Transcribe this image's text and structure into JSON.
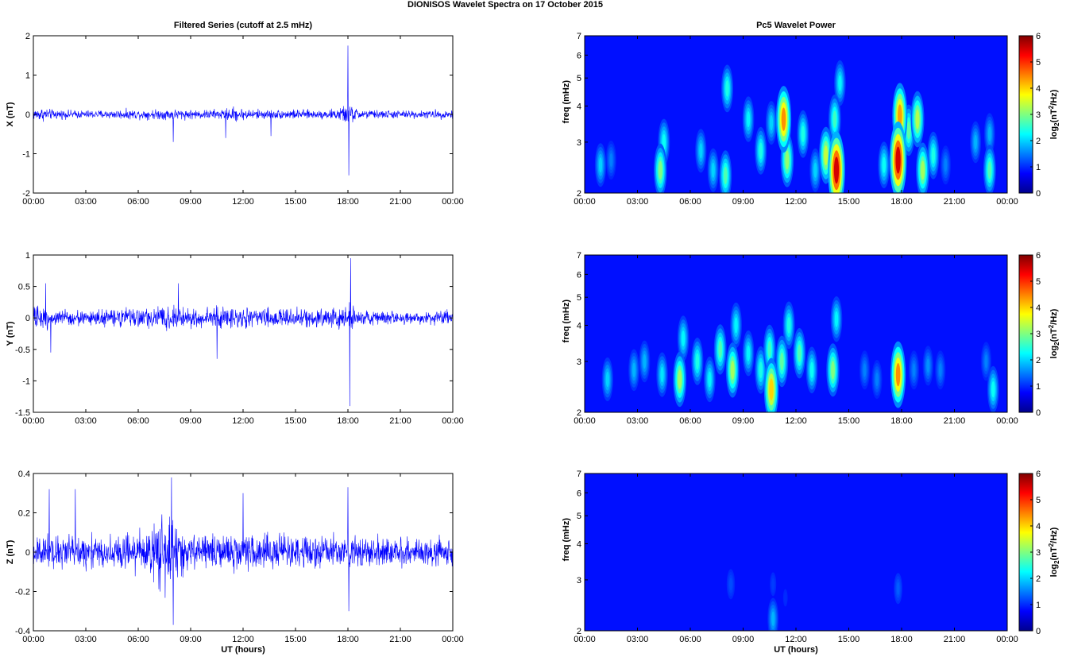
{
  "figure": {
    "title": "DIONISOS Wavelet Spectra on 17 October   2015"
  },
  "chart_data": [
    {
      "type": "line",
      "panel": "x-series",
      "title": "Filtered Series (cutoff at 2.5 mHz)",
      "xlabel": "",
      "ylabel": "X (nT)",
      "xticks": [
        "00:00",
        "03:00",
        "06:00",
        "09:00",
        "12:00",
        "15:00",
        "18:00",
        "21:00",
        "00:00"
      ],
      "xlim_hours": [
        0,
        24
      ],
      "yticks": [
        "-2",
        "-1",
        "0",
        "1",
        "2"
      ],
      "ylim": [
        -2,
        2
      ],
      "color": "#0000ff",
      "envelope": {
        "hours": [
          0,
          0.5,
          1,
          2,
          3,
          4,
          5,
          6,
          7,
          8,
          9,
          10,
          11,
          11.5,
          12,
          13,
          14,
          15,
          16,
          17,
          17.5,
          18,
          18.3,
          18.6,
          19,
          20,
          21,
          22,
          23,
          24
        ],
        "amplitude": [
          0.2,
          0.25,
          0.18,
          0.15,
          0.15,
          0.15,
          0.17,
          0.17,
          0.18,
          0.2,
          0.17,
          0.17,
          0.2,
          0.28,
          0.2,
          0.18,
          0.16,
          0.18,
          0.15,
          0.17,
          0.25,
          0.35,
          0.3,
          0.2,
          0.16,
          0.15,
          0.15,
          0.14,
          0.15,
          0.18
        ]
      },
      "peaks": [
        {
          "hour": 18.0,
          "value": 1.75
        },
        {
          "hour": 18.05,
          "value": -1.55
        },
        {
          "hour": 11.0,
          "value": -0.6
        },
        {
          "hour": 8.0,
          "value": -0.7
        },
        {
          "hour": 13.6,
          "value": -0.55
        }
      ]
    },
    {
      "type": "heatmap",
      "panel": "x-power",
      "title": "Pc5 Wavelet Power",
      "xlabel": "",
      "ylabel": "freq (mHz)",
      "xticks": [
        "00:00",
        "03:00",
        "06:00",
        "09:00",
        "12:00",
        "15:00",
        "18:00",
        "21:00",
        "00:00"
      ],
      "xlim_hours": [
        0,
        24
      ],
      "yticks": [
        "2",
        "3",
        "4",
        "5",
        "6",
        "7"
      ],
      "ylim_mHz": [
        2,
        7
      ],
      "yscale": "log",
      "colorbar": {
        "label": "log2(nT^2/Hz)",
        "ticks": [
          "0",
          "1",
          "2",
          "3",
          "4",
          "5",
          "6"
        ],
        "range": [
          0,
          6
        ],
        "colormap": "jet"
      },
      "blobs": [
        {
          "hour": 0.9,
          "freq": 2.5,
          "power": 2.0
        },
        {
          "hour": 1.5,
          "freq": 2.6,
          "power": 1.5
        },
        {
          "hour": 4.3,
          "freq": 2.4,
          "power": 3.0
        },
        {
          "hour": 4.5,
          "freq": 3.0,
          "power": 2.3
        },
        {
          "hour": 6.6,
          "freq": 2.8,
          "power": 2.0
        },
        {
          "hour": 7.3,
          "freq": 2.4,
          "power": 2.0
        },
        {
          "hour": 8.0,
          "freq": 2.3,
          "power": 2.7
        },
        {
          "hour": 8.1,
          "freq": 4.6,
          "power": 2.4
        },
        {
          "hour": 9.3,
          "freq": 3.6,
          "power": 2.2
        },
        {
          "hour": 10.0,
          "freq": 2.8,
          "power": 2.4
        },
        {
          "hour": 10.6,
          "freq": 3.5,
          "power": 2.0
        },
        {
          "hour": 11.3,
          "freq": 3.6,
          "power": 4.4
        },
        {
          "hour": 11.5,
          "freq": 2.6,
          "power": 3.1
        },
        {
          "hour": 12.4,
          "freq": 3.2,
          "power": 2.4
        },
        {
          "hour": 13.1,
          "freq": 2.4,
          "power": 2.0
        },
        {
          "hour": 13.7,
          "freq": 2.7,
          "power": 3.4
        },
        {
          "hour": 14.3,
          "freq": 2.4,
          "power": 5.5
        },
        {
          "hour": 14.2,
          "freq": 3.6,
          "power": 2.6
        },
        {
          "hour": 14.5,
          "freq": 4.8,
          "power": 2.2
        },
        {
          "hour": 17.0,
          "freq": 2.5,
          "power": 2.3
        },
        {
          "hour": 17.8,
          "freq": 2.6,
          "power": 5.5
        },
        {
          "hour": 17.9,
          "freq": 3.7,
          "power": 4.3
        },
        {
          "hour": 18.4,
          "freq": 3.3,
          "power": 2.8
        },
        {
          "hour": 18.9,
          "freq": 3.6,
          "power": 3.3
        },
        {
          "hour": 19.2,
          "freq": 2.4,
          "power": 3.2
        },
        {
          "hour": 19.8,
          "freq": 2.7,
          "power": 2.4
        },
        {
          "hour": 20.5,
          "freq": 2.5,
          "power": 1.5
        },
        {
          "hour": 22.2,
          "freq": 3.0,
          "power": 1.8
        },
        {
          "hour": 23.0,
          "freq": 2.4,
          "power": 2.7
        },
        {
          "hour": 23.0,
          "freq": 3.2,
          "power": 1.8
        }
      ]
    },
    {
      "type": "line",
      "panel": "y-series",
      "title": "",
      "xlabel": "",
      "ylabel": "Y (nT)",
      "xticks": [
        "00:00",
        "03:00",
        "06:00",
        "09:00",
        "12:00",
        "15:00",
        "18:00",
        "21:00",
        "00:00"
      ],
      "xlim_hours": [
        0,
        24
      ],
      "yticks": [
        "-1.5",
        "-1",
        "-0.5",
        "0",
        "0.5",
        "1"
      ],
      "ylim": [
        -1.5,
        1
      ],
      "color": "#0000ff",
      "envelope": {
        "hours": [
          0,
          0.5,
          1,
          2,
          3,
          4,
          5,
          6,
          7,
          8,
          9,
          10,
          11,
          11.5,
          12,
          13,
          14,
          15,
          16,
          17,
          17.5,
          18,
          18.3,
          18.6,
          19,
          20,
          21,
          22,
          23,
          24
        ],
        "amplitude": [
          0.25,
          0.3,
          0.2,
          0.17,
          0.17,
          0.18,
          0.2,
          0.22,
          0.22,
          0.25,
          0.26,
          0.25,
          0.27,
          0.25,
          0.24,
          0.24,
          0.2,
          0.22,
          0.18,
          0.2,
          0.25,
          0.35,
          0.3,
          0.2,
          0.18,
          0.16,
          0.15,
          0.14,
          0.15,
          0.17
        ]
      },
      "peaks": [
        {
          "hour": 18.15,
          "value": 0.95
        },
        {
          "hour": 18.1,
          "value": -1.4
        },
        {
          "hour": 10.5,
          "value": -0.65
        },
        {
          "hour": 1.0,
          "value": -0.55
        },
        {
          "hour": 0.7,
          "value": 0.55
        },
        {
          "hour": 8.3,
          "value": 0.55
        }
      ]
    },
    {
      "type": "heatmap",
      "panel": "y-power",
      "title": "",
      "xlabel": "",
      "ylabel": "freq (mHz)",
      "xticks": [
        "00:00",
        "03:00",
        "06:00",
        "09:00",
        "12:00",
        "15:00",
        "18:00",
        "21:00",
        "00:00"
      ],
      "xlim_hours": [
        0,
        24
      ],
      "yticks": [
        "2",
        "3",
        "4",
        "5",
        "6",
        "7"
      ],
      "ylim_mHz": [
        2,
        7
      ],
      "yscale": "log",
      "colorbar": {
        "label": "log2(nT^2/Hz)",
        "ticks": [
          "0",
          "1",
          "2",
          "3",
          "4",
          "5",
          "6"
        ],
        "range": [
          0,
          6
        ],
        "colormap": "jet"
      },
      "blobs": [
        {
          "hour": 1.3,
          "freq": 2.6,
          "power": 2.0
        },
        {
          "hour": 2.8,
          "freq": 2.8,
          "power": 1.8
        },
        {
          "hour": 3.4,
          "freq": 3.0,
          "power": 1.8
        },
        {
          "hour": 4.4,
          "freq": 2.7,
          "power": 2.1
        },
        {
          "hour": 5.4,
          "freq": 2.6,
          "power": 3.2
        },
        {
          "hour": 5.6,
          "freq": 3.6,
          "power": 2.2
        },
        {
          "hour": 6.4,
          "freq": 3.0,
          "power": 2.4
        },
        {
          "hour": 7.1,
          "freq": 2.6,
          "power": 2.2
        },
        {
          "hour": 7.7,
          "freq": 3.3,
          "power": 2.7
        },
        {
          "hour": 8.4,
          "freq": 2.8,
          "power": 3.2
        },
        {
          "hour": 8.6,
          "freq": 4.0,
          "power": 2.2
        },
        {
          "hour": 9.3,
          "freq": 3.2,
          "power": 2.2
        },
        {
          "hour": 10.0,
          "freq": 2.8,
          "power": 2.4
        },
        {
          "hour": 10.6,
          "freq": 2.4,
          "power": 4.0
        },
        {
          "hour": 10.5,
          "freq": 3.3,
          "power": 2.6
        },
        {
          "hour": 11.2,
          "freq": 3.0,
          "power": 2.8
        },
        {
          "hour": 11.6,
          "freq": 4.0,
          "power": 2.4
        },
        {
          "hour": 12.2,
          "freq": 3.2,
          "power": 2.7
        },
        {
          "hour": 12.9,
          "freq": 2.8,
          "power": 2.3
        },
        {
          "hour": 14.1,
          "freq": 2.8,
          "power": 3.0
        },
        {
          "hour": 14.3,
          "freq": 4.2,
          "power": 2.2
        },
        {
          "hour": 15.9,
          "freq": 2.8,
          "power": 1.5
        },
        {
          "hour": 16.6,
          "freq": 2.6,
          "power": 1.5
        },
        {
          "hour": 17.8,
          "freq": 2.7,
          "power": 4.4
        },
        {
          "hour": 18.7,
          "freq": 2.8,
          "power": 1.5
        },
        {
          "hour": 19.5,
          "freq": 2.9,
          "power": 1.6
        },
        {
          "hour": 20.2,
          "freq": 2.8,
          "power": 1.5
        },
        {
          "hour": 22.8,
          "freq": 3.0,
          "power": 1.5
        },
        {
          "hour": 23.2,
          "freq": 2.4,
          "power": 2.3
        }
      ]
    },
    {
      "type": "line",
      "panel": "z-series",
      "title": "",
      "xlabel": "UT (hours)",
      "ylabel": "Z (nT)",
      "xticks": [
        "00:00",
        "03:00",
        "06:00",
        "09:00",
        "12:00",
        "15:00",
        "18:00",
        "21:00",
        "00:00"
      ],
      "xlim_hours": [
        0,
        24
      ],
      "yticks": [
        "-0.4",
        "-0.2",
        "0",
        "0.2",
        "0.4"
      ],
      "ylim": [
        -0.4,
        0.4
      ],
      "color": "#0000ff",
      "envelope": {
        "hours": [
          0,
          0.5,
          1,
          2,
          3,
          4,
          5,
          6,
          6.5,
          7,
          7.5,
          8,
          8.5,
          9,
          10,
          11,
          12,
          13,
          14,
          15,
          16,
          17,
          18,
          18.5,
          19,
          20,
          21,
          22,
          23,
          24
        ],
        "amplitude": [
          0.12,
          0.15,
          0.13,
          0.12,
          0.12,
          0.11,
          0.12,
          0.13,
          0.18,
          0.24,
          0.28,
          0.25,
          0.18,
          0.14,
          0.13,
          0.13,
          0.13,
          0.12,
          0.12,
          0.12,
          0.11,
          0.11,
          0.14,
          0.12,
          0.11,
          0.11,
          0.1,
          0.1,
          0.11,
          0.11
        ]
      },
      "peaks": [
        {
          "hour": 7.9,
          "value": 0.38
        },
        {
          "hour": 8.0,
          "value": -0.37
        },
        {
          "hour": 0.9,
          "value": 0.32
        },
        {
          "hour": 18.0,
          "value": 0.33
        },
        {
          "hour": 18.05,
          "value": -0.3
        },
        {
          "hour": 12.0,
          "value": 0.3
        },
        {
          "hour": 2.4,
          "value": 0.32
        }
      ]
    },
    {
      "type": "heatmap",
      "panel": "z-power",
      "title": "",
      "xlabel": "UT (hours)",
      "ylabel": "freq (mHz)",
      "xticks": [
        "00:00",
        "03:00",
        "06:00",
        "09:00",
        "12:00",
        "15:00",
        "18:00",
        "21:00",
        "00:00"
      ],
      "xlim_hours": [
        0,
        24
      ],
      "yticks": [
        "2",
        "3",
        "4",
        "5",
        "6",
        "7"
      ],
      "ylim_mHz": [
        2,
        7
      ],
      "yscale": "log",
      "colorbar": {
        "label": "log2(nT^2/Hz)",
        "ticks": [
          "0",
          "1",
          "2",
          "3",
          "4",
          "5",
          "6"
        ],
        "range": [
          0,
          6
        ],
        "colormap": "jet"
      },
      "blobs": [
        {
          "hour": 8.3,
          "freq": 2.9,
          "power": 1.2
        },
        {
          "hour": 10.7,
          "freq": 2.2,
          "power": 1.8
        },
        {
          "hour": 10.7,
          "freq": 2.9,
          "power": 1.1
        },
        {
          "hour": 11.4,
          "freq": 2.6,
          "power": 1.0
        },
        {
          "hour": 17.8,
          "freq": 2.8,
          "power": 1.3
        },
        {
          "hour": 7.5,
          "freq": 2.9,
          "power": 0.8
        },
        {
          "hour": 12.8,
          "freq": 2.8,
          "power": 0.7
        }
      ]
    }
  ]
}
